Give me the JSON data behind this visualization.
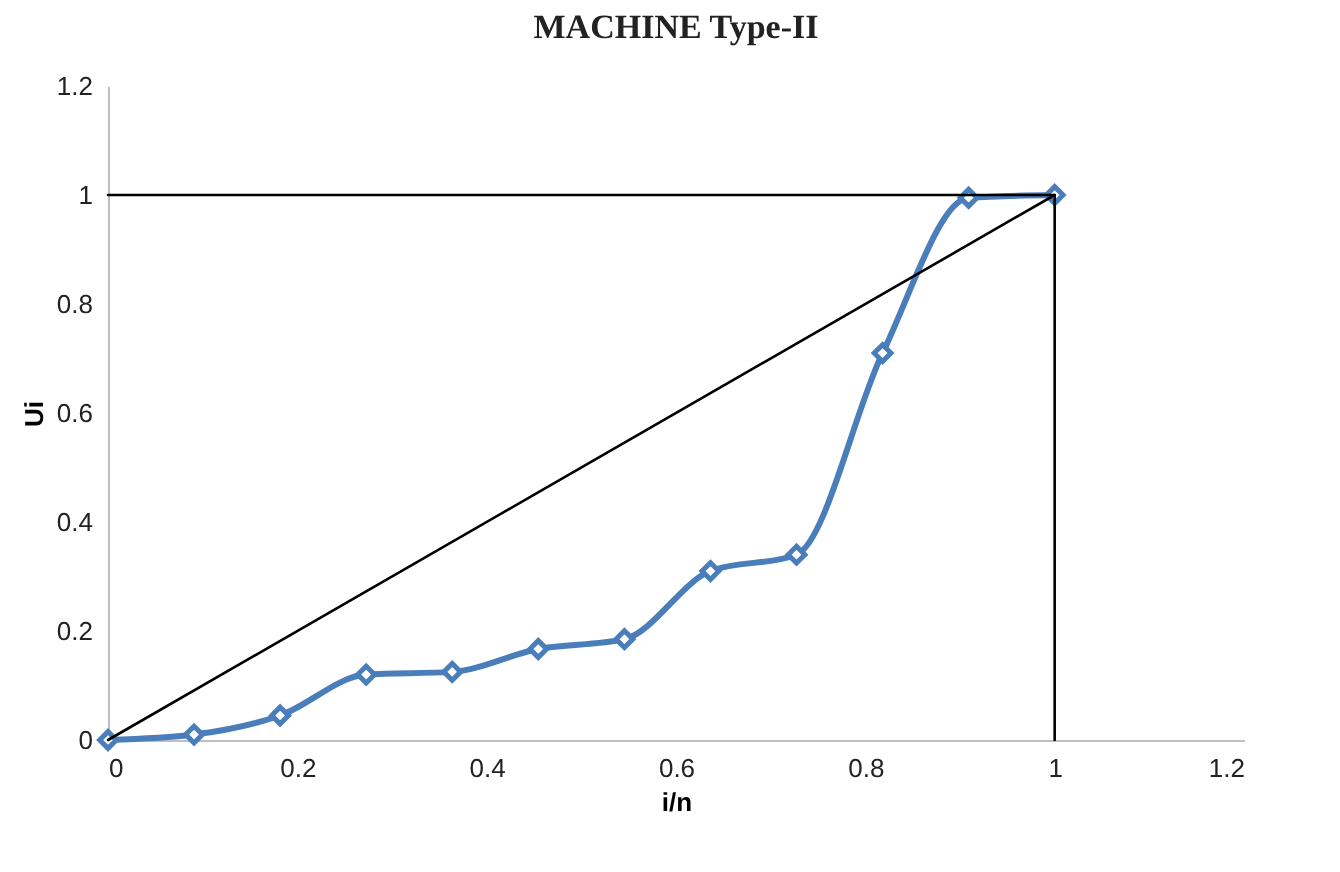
{
  "chart_data": {
    "type": "line",
    "title": "MACHINE Type-II",
    "xlabel": "i/n",
    "ylabel": "Ui",
    "xlim": [
      0,
      1.2
    ],
    "xticks": [
      0,
      0.2,
      0.4,
      0.6,
      0.8,
      1,
      1.2
    ],
    "ylim": [
      0,
      1.2
    ],
    "yticks": [
      0,
      0.2,
      0.4,
      0.6,
      0.8,
      1,
      1.2
    ],
    "grid": false,
    "marker": "diamond",
    "series": [
      {
        "color": "#4a7ebb",
        "x": [
          0,
          0.0909,
          0.1818,
          0.2727,
          0.3636,
          0.4545,
          0.5455,
          0.6364,
          0.7273,
          0.8182,
          0.9091,
          1
        ],
        "values": [
          0,
          0.01,
          0.045,
          0.12,
          0.125,
          0.167,
          0.185,
          0.31,
          0.34,
          0.71,
          0.995,
          1
        ]
      },
      {
        "color": "#000000",
        "marker": "none",
        "x": [
          0,
          1
        ],
        "values": [
          0,
          1
        ]
      },
      {
        "color": "#000000",
        "marker": "none",
        "x": [
          0,
          1
        ],
        "values": [
          1,
          1
        ]
      },
      {
        "color": "#000000",
        "marker": "none",
        "x": [
          1,
          1
        ],
        "values": [
          0,
          1
        ]
      }
    ]
  }
}
